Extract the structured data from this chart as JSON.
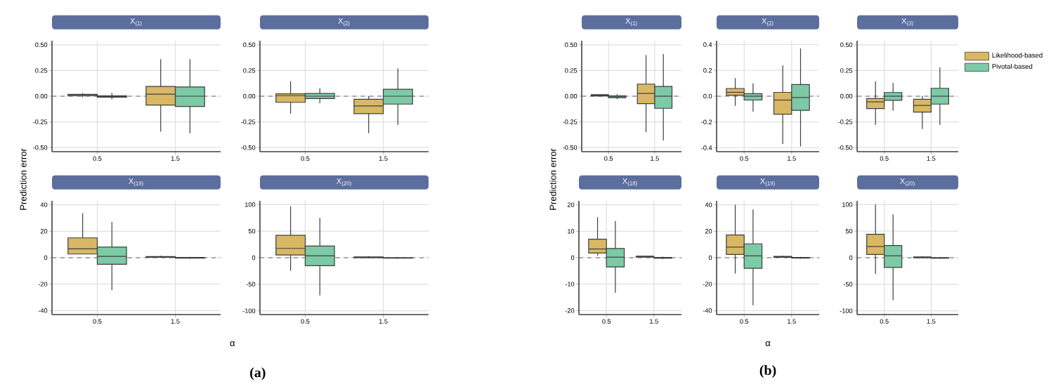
{
  "chart_data": [
    {
      "type": "box",
      "title": "X$_{(1)}$",
      "ylabel": "Prediction error",
      "categories": [
        "0.5",
        "1.5"
      ],
      "ylim": [
        -0.54,
        0.54
      ],
      "yticks": [
        {
          "value": -0.5,
          "label": "-0.50"
        },
        {
          "value": -0.25,
          "label": "-0.25"
        },
        {
          "value": 0,
          "label": "0.00"
        },
        {
          "value": 0.25,
          "label": "0.25"
        },
        {
          "value": 0.5,
          "label": "0.50"
        }
      ],
      "grid": true,
      "ref_lines": [
        {
          "axis": "y",
          "value": 0,
          "line_style": "dashed",
          "color": "#666666"
        }
      ],
      "series": [
        {
          "color": "#d9b865",
          "boxes": [
            {
              "low": -0.01,
              "q1": 0.005,
              "median": 0.012,
              "q3": 0.018,
              "high": 0.03
            },
            {
              "low": -0.345,
              "q1": -0.086,
              "median": 0.02,
              "q3": 0.095,
              "high": 0.36
            }
          ]
        },
        {
          "color": "#7ccaa6",
          "boxes": [
            {
              "low": -0.03,
              "q1": -0.01,
              "median": -0.002,
              "q3": 0.005,
              "high": 0.03
            },
            {
              "low": -0.36,
              "q1": -0.1,
              "median": 0,
              "q3": 0.09,
              "high": 0.36
            }
          ]
        }
      ]
    },
    {
      "type": "box",
      "title": "X$_{(2)}$",
      "categories": [
        "0.5",
        "1.5"
      ],
      "ylim": [
        -0.54,
        0.54
      ],
      "yticks": [
        {
          "value": -0.5,
          "label": "-0.50"
        },
        {
          "value": -0.25,
          "label": "-0.25"
        },
        {
          "value": 0,
          "label": "0.00"
        },
        {
          "value": 0.25,
          "label": "0.25"
        },
        {
          "value": 0.5,
          "label": "0.50"
        }
      ],
      "grid": true,
      "ref_lines": [
        {
          "axis": "y",
          "value": 0,
          "line_style": "dashed",
          "color": "#666666"
        }
      ],
      "series": [
        {
          "color": "#d9b865",
          "boxes": [
            {
              "low": -0.17,
              "q1": -0.06,
              "median": 0.005,
              "q3": 0.023,
              "high": 0.145
            },
            {
              "low": -0.36,
              "q1": -0.17,
              "median": -0.095,
              "q3": -0.03,
              "high": 0
            }
          ]
        },
        {
          "color": "#7ccaa6",
          "boxes": [
            {
              "low": -0.068,
              "q1": -0.023,
              "median": 0,
              "q3": 0.027,
              "high": 0.077
            },
            {
              "low": -0.28,
              "q1": -0.077,
              "median": 0,
              "q3": 0.068,
              "high": 0.27
            }
          ]
        }
      ]
    },
    {
      "type": "box",
      "title": "X$_{(19)}$",
      "xlabel": "α",
      "annotations": [
        "(a)"
      ],
      "categories": [
        "0.5",
        "1.5"
      ],
      "ylim": [
        -43,
        43
      ],
      "yticks": [
        -40,
        -20,
        0,
        20,
        40
      ],
      "grid": true,
      "ref_lines": [
        {
          "axis": "y",
          "value": 0,
          "line_style": "dashed",
          "color": "#666666"
        }
      ],
      "series": [
        {
          "color": "#d9b865",
          "boxes": [
            {
              "low": 2.8,
              "q1": 2.8,
              "median": 6.7,
              "q3": 15,
              "high": 33.7
            },
            {
              "low": 0,
              "q1": 0.3,
              "median": 0.6,
              "q3": 0.9,
              "high": 1.5
            }
          ]
        },
        {
          "color": "#7ccaa6",
          "boxes": [
            {
              "low": -24.6,
              "q1": -5,
              "median": 1,
              "q3": 8,
              "high": 27
            },
            {
              "low": -0.8,
              "q1": -0.3,
              "median": 0,
              "q3": 0.2,
              "high": 0.6
            }
          ]
        }
      ]
    },
    {
      "type": "box",
      "title": "X$_{(20)}$",
      "categories": [
        "0.5",
        "1.5"
      ],
      "ylim": [
        -107,
        107
      ],
      "yticks": [
        -100,
        -50,
        0,
        50,
        100
      ],
      "grid": true,
      "ref_lines": [
        {
          "axis": "y",
          "value": 0,
          "line_style": "dashed",
          "color": "#666666"
        }
      ],
      "series": [
        {
          "color": "#d9b865",
          "boxes": [
            {
              "low": -24.6,
              "q1": 5,
              "median": 17.5,
              "q3": 42,
              "high": 96.5
            },
            {
              "low": -1,
              "q1": 0,
              "median": 0.5,
              "q3": 1.5,
              "high": 3
            }
          ]
        },
        {
          "color": "#7ccaa6",
          "boxes": [
            {
              "low": -71,
              "q1": -15,
              "median": 3.5,
              "q3": 22,
              "high": 75
            },
            {
              "low": -2,
              "q1": -1,
              "median": -0.5,
              "q3": 0,
              "high": 1
            }
          ]
        }
      ]
    },
    {
      "type": "box",
      "title": "X$_{(1)}$",
      "ylabel": "Prediction error",
      "categories": [
        "0.5",
        "1.5"
      ],
      "ylim": [
        -0.54,
        0.54
      ],
      "yticks": [
        {
          "value": -0.5,
          "label": "-0.50"
        },
        {
          "value": -0.25,
          "label": "-0.25"
        },
        {
          "value": 0,
          "label": "0.00"
        },
        {
          "value": 0.25,
          "label": "0.25"
        },
        {
          "value": 0.5,
          "label": "0.50"
        }
      ],
      "grid": true,
      "ref_lines": [
        {
          "axis": "y",
          "value": 0,
          "line_style": "dashed",
          "color": "#666666"
        }
      ],
      "series": [
        {
          "color": "#d9b865",
          "boxes": [
            {
              "low": -0.005,
              "q1": 0.003,
              "median": 0.01,
              "q3": 0.015,
              "high": 0.015
            },
            {
              "low": -0.35,
              "q1": -0.073,
              "median": 0.027,
              "q3": 0.118,
              "high": 0.4
            }
          ]
        },
        {
          "color": "#7ccaa6",
          "boxes": [
            {
              "low": -0.03,
              "q1": -0.015,
              "median": -0.005,
              "q3": 0.005,
              "high": 0.02
            },
            {
              "low": -0.43,
              "q1": -0.118,
              "median": 0,
              "q3": 0.095,
              "high": 0.41
            }
          ]
        }
      ]
    },
    {
      "type": "box",
      "title": "X$_{(2)}$",
      "categories": [
        "0.5",
        "1.5"
      ],
      "ylim": [
        -0.43,
        0.43
      ],
      "yticks": [
        {
          "value": -0.4,
          "label": "-0.4"
        },
        {
          "value": -0.2,
          "label": "-0.2"
        },
        {
          "value": 0,
          "label": "0.0"
        },
        {
          "value": 0.2,
          "label": "0.2"
        },
        {
          "value": 0.4,
          "label": "0.4"
        }
      ],
      "grid": true,
      "ref_lines": [
        {
          "axis": "y",
          "value": 0,
          "line_style": "dashed",
          "color": "#666666"
        }
      ],
      "series": [
        {
          "color": "#d9b865",
          "boxes": [
            {
              "low": -0.075,
              "q1": 0.007,
              "median": 0.03,
              "q3": 0.06,
              "high": 0.14
            },
            {
              "low": -0.37,
              "q1": -0.14,
              "median": -0.03,
              "q3": 0.03,
              "high": 0.24
            }
          ]
        },
        {
          "color": "#7ccaa6",
          "boxes": [
            {
              "low": -0.12,
              "q1": -0.03,
              "median": 0,
              "q3": 0.02,
              "high": 0.1
            },
            {
              "low": -0.39,
              "q1": -0.11,
              "median": -0.01,
              "q3": 0.09,
              "high": 0.37
            }
          ]
        }
      ]
    },
    {
      "type": "box",
      "title": "X$_{(3)}$",
      "categories": [
        "0.5",
        "1.5"
      ],
      "ylim": [
        -0.54,
        0.54
      ],
      "yticks": [
        {
          "value": -0.5,
          "label": "-0.50"
        },
        {
          "value": -0.25,
          "label": "-0.25"
        },
        {
          "value": 0,
          "label": "0.00"
        },
        {
          "value": 0.25,
          "label": "0.25"
        },
        {
          "value": 0.5,
          "label": "0.50"
        }
      ],
      "grid": true,
      "legend": "right",
      "ref_lines": [
        {
          "axis": "y",
          "value": 0,
          "line_style": "dashed",
          "color": "#666666"
        }
      ],
      "series": [
        {
          "name": "Likelihood-based",
          "color": "#d9b865",
          "boxes": [
            {
              "low": -0.28,
              "q1": -0.12,
              "median": -0.055,
              "q3": -0.023,
              "high": 0.145
            },
            {
              "low": -0.32,
              "q1": -0.155,
              "median": -0.09,
              "q3": -0.03,
              "high": 0
            }
          ]
        },
        {
          "name": "Pivotal-based",
          "color": "#7ccaa6",
          "boxes": [
            {
              "low": -0.14,
              "q1": -0.04,
              "median": 0,
              "q3": 0.036,
              "high": 0.13
            },
            {
              "low": -0.28,
              "q1": -0.077,
              "median": 0,
              "q3": 0.077,
              "high": 0.28
            }
          ]
        }
      ]
    },
    {
      "type": "box",
      "title": "X$_{(18)}$",
      "categories": [
        "0.5",
        "1.5"
      ],
      "ylim": [
        -21.5,
        21.5
      ],
      "yticks": [
        -20,
        -10,
        0,
        10,
        20
      ],
      "grid": true,
      "ref_lines": [
        {
          "axis": "y",
          "value": 0,
          "line_style": "dashed",
          "color": "#666666"
        }
      ],
      "series": [
        {
          "color": "#d9b865",
          "boxes": [
            {
              "low": 0.7,
              "q1": 1.75,
              "median": 3.3,
              "q3": 7,
              "high": 15.3
            },
            {
              "low": 0,
              "q1": 0.2,
              "median": 0.4,
              "q3": 0.6,
              "high": 0.6
            }
          ]
        },
        {
          "color": "#7ccaa6",
          "boxes": [
            {
              "low": -13.3,
              "q1": -3.5,
              "median": 0.2,
              "q3": 3.5,
              "high": 13.9
            },
            {
              "low": -0.5,
              "q1": -0.2,
              "median": 0,
              "q3": 0.1,
              "high": 0.4
            }
          ]
        }
      ]
    },
    {
      "type": "box",
      "title": "X$_{(19)}$",
      "xlabel": "α",
      "annotations": [
        "(b)"
      ],
      "categories": [
        "0.5",
        "1.5"
      ],
      "ylim": [
        -43,
        43
      ],
      "yticks": [
        -40,
        -20,
        0,
        20,
        40
      ],
      "grid": true,
      "ref_lines": [
        {
          "axis": "y",
          "value": 0,
          "line_style": "dashed",
          "color": "#666666"
        }
      ],
      "series": [
        {
          "color": "#d9b865",
          "boxes": [
            {
              "low": -12,
              "q1": 2.5,
              "median": 8,
              "q3": 17.2,
              "high": 40
            },
            {
              "low": 0,
              "q1": 0.3,
              "median": 0.6,
              "q3": 1,
              "high": 1.5
            }
          ]
        },
        {
          "color": "#7ccaa6",
          "boxes": [
            {
              "low": -36,
              "q1": -8,
              "median": 1.4,
              "q3": 10.5,
              "high": 36.5
            },
            {
              "low": -0.8,
              "q1": -0.3,
              "median": 0,
              "q3": 0.2,
              "high": 0.6
            }
          ]
        }
      ]
    },
    {
      "type": "box",
      "title": "X$_{(20)}$",
      "categories": [
        "0.5",
        "1.5"
      ],
      "ylim": [
        -107,
        107
      ],
      "yticks": [
        -100,
        -50,
        0,
        50,
        100
      ],
      "grid": true,
      "ref_lines": [
        {
          "axis": "y",
          "value": 0,
          "line_style": "dashed",
          "color": "#666666"
        }
      ],
      "series": [
        {
          "color": "#d9b865",
          "boxes": [
            {
              "low": -30.7,
              "q1": 6,
              "median": 21,
              "q3": 44,
              "high": 100
            },
            {
              "low": -1,
              "q1": 0,
              "median": 0.5,
              "q3": 1.5,
              "high": 3
            }
          ]
        },
        {
          "color": "#7ccaa6",
          "boxes": [
            {
              "low": -80,
              "q1": -18.4,
              "median": 3.5,
              "q3": 23,
              "high": 81.6
            },
            {
              "low": -2,
              "q1": -1,
              "median": -0.5,
              "q3": 0,
              "high": 1
            }
          ]
        }
      ]
    }
  ]
}
